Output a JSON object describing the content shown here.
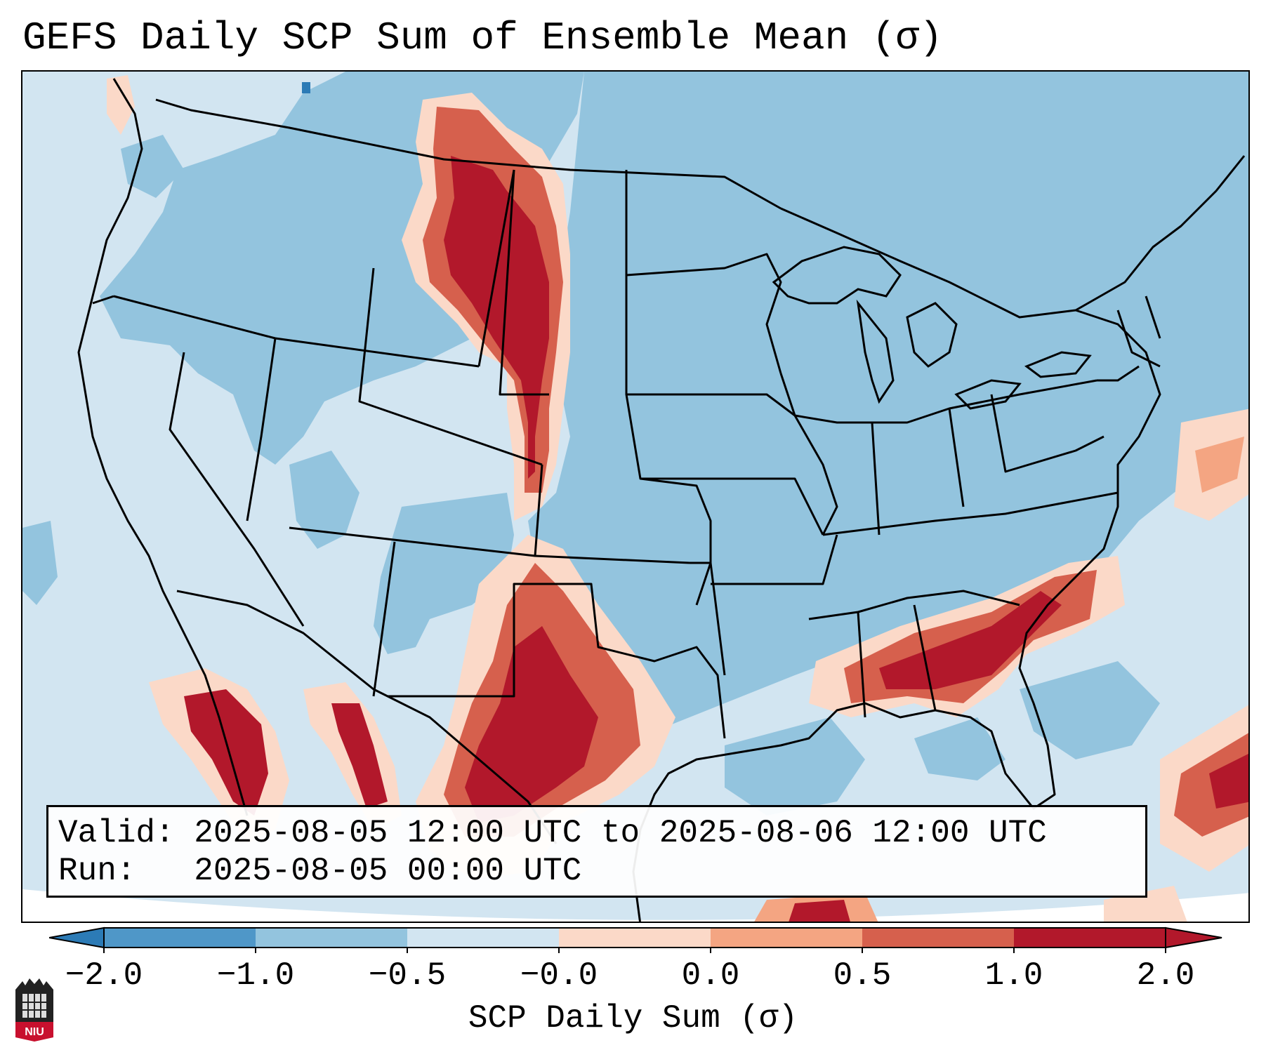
{
  "title": "GEFS Daily SCP Sum of Ensemble Mean (σ)",
  "info": {
    "valid_label": "Valid:",
    "valid_value": "2025-08-05 12:00 UTC to 2025-08-06 12:00 UTC",
    "run_label": "Run:",
    "run_value": "2025-08-05 00:00 UTC"
  },
  "colorbar": {
    "label": "SCP Daily Sum (σ)",
    "ticks": [
      "−2.0",
      "−1.0",
      "−0.5",
      "−0.0",
      "0.0",
      "0.5",
      "1.0",
      "2.0"
    ],
    "colors": [
      "#2c7bb6",
      "#4f97c8",
      "#93c4de",
      "#d2e5f1",
      "#fbd9c8",
      "#f4a582",
      "#d6604d",
      "#b2182b"
    ]
  },
  "logo": {
    "text": "NIU",
    "color": "#c8102e"
  },
  "icons": {
    "logo": "niu-logo-icon"
  }
}
